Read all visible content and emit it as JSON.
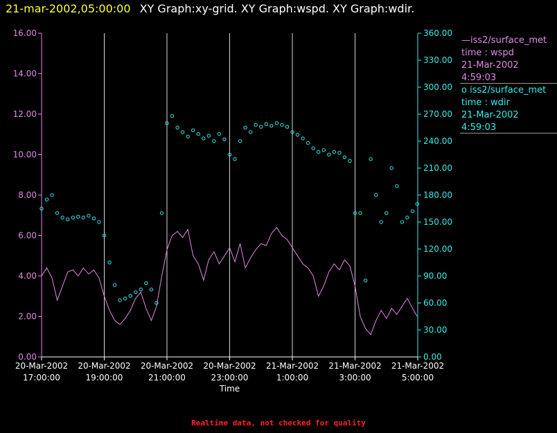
{
  "title": {
    "timestamp": "21-mar-2002,05:00:00",
    "graphs": "XY Graph:xy-grid.  XY Graph:wspd.  XY Graph:wdir."
  },
  "legend": [
    {
      "line1": "—iss2/surface_met",
      "line2": "time : wspd",
      "line3": "21-Mar-2002",
      "line4": "4:59:03",
      "color": "#e28ae2"
    },
    {
      "line1": "o iss2/surface_met",
      "line2": "time : wdir",
      "line3": "21-Mar-2002",
      "line4": "4:59:03",
      "color": "#33eeee"
    }
  ],
  "footer": "Realtime data, not checked for quality",
  "chart_data": {
    "type": "line",
    "title": "XY Graph:xy-grid.  XY Graph:wspd.  XY Graph:wdir.",
    "xlabel": "Time",
    "x_ticks": [
      {
        "date": "20-Mar-2002",
        "time": "17:00:00"
      },
      {
        "date": "20-Mar-2002",
        "time": "19:00:00"
      },
      {
        "date": "20-Mar-2002",
        "time": "21:00:00"
      },
      {
        "date": "20-Mar-2002",
        "time": "23:00:00"
      },
      {
        "date": "21-Mar-2002",
        "time": "1:00:00"
      },
      {
        "date": "21-Mar-2002",
        "time": "3:00:00"
      },
      {
        "date": "21-Mar-2002",
        "time": "5:00:00"
      }
    ],
    "xlim": [
      "2002-03-20T17:00",
      "2002-03-21T05:00"
    ],
    "y_left": {
      "ylim": [
        0,
        16
      ],
      "ticks": [
        "0.00",
        "2.00",
        "4.00",
        "6.00",
        "8.00",
        "10.00",
        "12.00",
        "14.00",
        "16.00"
      ],
      "color": "#e28ae2"
    },
    "y_right": {
      "ylim": [
        0,
        360
      ],
      "ticks": [
        "0.00",
        "30.00",
        "60.00",
        "90.00",
        "120.00",
        "150.00",
        "180.00",
        "210.00",
        "240.00",
        "270.00",
        "300.00",
        "330.00",
        "360.00"
      ],
      "color": "#33eeee"
    },
    "grid": "vertical lines at x ticks",
    "series": [
      {
        "name": "iss2/surface_met time : wspd",
        "axis": "left",
        "style": "line",
        "color": "#e28ae2",
        "points": [
          [
            "2002-03-20T17:00",
            4.0
          ],
          [
            "2002-03-20T17:10",
            4.4
          ],
          [
            "2002-03-20T17:20",
            3.9
          ],
          [
            "2002-03-20T17:30",
            2.8
          ],
          [
            "2002-03-20T17:40",
            3.5
          ],
          [
            "2002-03-20T17:50",
            4.2
          ],
          [
            "2002-03-20T18:00",
            4.3
          ],
          [
            "2002-03-20T18:10",
            4.0
          ],
          [
            "2002-03-20T18:20",
            4.4
          ],
          [
            "2002-03-20T18:30",
            4.1
          ],
          [
            "2002-03-20T18:40",
            4.3
          ],
          [
            "2002-03-20T18:50",
            3.9
          ],
          [
            "2002-03-20T19:00",
            3.0
          ],
          [
            "2002-03-20T19:10",
            2.3
          ],
          [
            "2002-03-20T19:20",
            1.8
          ],
          [
            "2002-03-20T19:30",
            1.6
          ],
          [
            "2002-03-20T19:40",
            1.9
          ],
          [
            "2002-03-20T19:50",
            2.3
          ],
          [
            "2002-03-20T20:00",
            2.9
          ],
          [
            "2002-03-20T20:10",
            3.2
          ],
          [
            "2002-03-20T20:20",
            2.4
          ],
          [
            "2002-03-20T20:30",
            1.8
          ],
          [
            "2002-03-20T20:40",
            2.5
          ],
          [
            "2002-03-20T20:50",
            4.0
          ],
          [
            "2002-03-20T21:00",
            5.3
          ],
          [
            "2002-03-20T21:10",
            6.0
          ],
          [
            "2002-03-20T21:20",
            6.2
          ],
          [
            "2002-03-20T21:30",
            5.9
          ],
          [
            "2002-03-20T21:40",
            6.3
          ],
          [
            "2002-03-20T21:50",
            5.0
          ],
          [
            "2002-03-20T22:00",
            4.6
          ],
          [
            "2002-03-20T22:10",
            3.8
          ],
          [
            "2002-03-20T22:20",
            4.8
          ],
          [
            "2002-03-20T22:30",
            5.2
          ],
          [
            "2002-03-20T22:40",
            4.6
          ],
          [
            "2002-03-20T22:50",
            5.0
          ],
          [
            "2002-03-20T23:00",
            5.4
          ],
          [
            "2002-03-20T23:10",
            4.7
          ],
          [
            "2002-03-20T23:20",
            5.6
          ],
          [
            "2002-03-20T23:30",
            4.4
          ],
          [
            "2002-03-20T23:40",
            4.9
          ],
          [
            "2002-03-20T23:50",
            5.3
          ],
          [
            "2002-03-21T00:00",
            5.6
          ],
          [
            "2002-03-21T00:10",
            5.5
          ],
          [
            "2002-03-21T00:20",
            6.1
          ],
          [
            "2002-03-21T00:30",
            6.4
          ],
          [
            "2002-03-21T00:40",
            6.0
          ],
          [
            "2002-03-21T00:50",
            5.8
          ],
          [
            "2002-03-21T01:00",
            5.4
          ],
          [
            "2002-03-21T01:10",
            5.0
          ],
          [
            "2002-03-21T01:20",
            4.6
          ],
          [
            "2002-03-21T01:30",
            4.4
          ],
          [
            "2002-03-21T01:40",
            4.0
          ],
          [
            "2002-03-21T01:50",
            3.0
          ],
          [
            "2002-03-21T02:00",
            3.5
          ],
          [
            "2002-03-21T02:10",
            4.2
          ],
          [
            "2002-03-21T02:20",
            4.6
          ],
          [
            "2002-03-21T02:30",
            4.3
          ],
          [
            "2002-03-21T02:40",
            4.8
          ],
          [
            "2002-03-21T02:50",
            4.5
          ],
          [
            "2002-03-21T03:00",
            3.5
          ],
          [
            "2002-03-21T03:10",
            2.0
          ],
          [
            "2002-03-21T03:20",
            1.4
          ],
          [
            "2002-03-21T03:30",
            1.1
          ],
          [
            "2002-03-21T03:40",
            1.8
          ],
          [
            "2002-03-21T03:50",
            2.3
          ],
          [
            "2002-03-21T04:00",
            1.9
          ],
          [
            "2002-03-21T04:10",
            2.4
          ],
          [
            "2002-03-21T04:20",
            2.1
          ],
          [
            "2002-03-21T04:30",
            2.5
          ],
          [
            "2002-03-21T04:40",
            2.9
          ],
          [
            "2002-03-21T04:50",
            2.4
          ],
          [
            "2002-03-21T04:59",
            2.0
          ]
        ]
      },
      {
        "name": "iss2/surface_met time : wdir",
        "axis": "right",
        "style": "circles",
        "color": "#33eeee",
        "points": [
          [
            "2002-03-20T17:00",
            165
          ],
          [
            "2002-03-20T17:10",
            175
          ],
          [
            "2002-03-20T17:20",
            180
          ],
          [
            "2002-03-20T17:30",
            160
          ],
          [
            "2002-03-20T17:40",
            155
          ],
          [
            "2002-03-20T17:50",
            153
          ],
          [
            "2002-03-20T18:00",
            155
          ],
          [
            "2002-03-20T18:10",
            156
          ],
          [
            "2002-03-20T18:20",
            155
          ],
          [
            "2002-03-20T18:30",
            157
          ],
          [
            "2002-03-20T18:40",
            154
          ],
          [
            "2002-03-20T18:50",
            150
          ],
          [
            "2002-03-20T19:00",
            135
          ],
          [
            "2002-03-20T19:10",
            105
          ],
          [
            "2002-03-20T19:20",
            80
          ],
          [
            "2002-03-20T19:30",
            63
          ],
          [
            "2002-03-20T19:40",
            65
          ],
          [
            "2002-03-20T19:50",
            68
          ],
          [
            "2002-03-20T20:00",
            72
          ],
          [
            "2002-03-20T20:10",
            75
          ],
          [
            "2002-03-20T20:20",
            82
          ],
          [
            "2002-03-20T20:30",
            75
          ],
          [
            "2002-03-20T20:40",
            60
          ],
          [
            "2002-03-20T20:50",
            160
          ],
          [
            "2002-03-20T21:00",
            260
          ],
          [
            "2002-03-20T21:10",
            268
          ],
          [
            "2002-03-20T21:20",
            255
          ],
          [
            "2002-03-20T21:30",
            250
          ],
          [
            "2002-03-20T21:40",
            245
          ],
          [
            "2002-03-20T21:50",
            252
          ],
          [
            "2002-03-20T22:00",
            248
          ],
          [
            "2002-03-20T22:10",
            243
          ],
          [
            "2002-03-20T22:20",
            246
          ],
          [
            "2002-03-20T22:30",
            240
          ],
          [
            "2002-03-20T22:40",
            248
          ],
          [
            "2002-03-20T22:50",
            242
          ],
          [
            "2002-03-20T23:00",
            225
          ],
          [
            "2002-03-20T23:10",
            220
          ],
          [
            "2002-03-20T23:20",
            240
          ],
          [
            "2002-03-20T23:30",
            255
          ],
          [
            "2002-03-20T23:40",
            250
          ],
          [
            "2002-03-20T23:50",
            258
          ],
          [
            "2002-03-21T00:00",
            256
          ],
          [
            "2002-03-21T00:10",
            259
          ],
          [
            "2002-03-21T00:20",
            257
          ],
          [
            "2002-03-21T00:30",
            260
          ],
          [
            "2002-03-21T00:40",
            258
          ],
          [
            "2002-03-21T00:50",
            256
          ],
          [
            "2002-03-21T01:00",
            250
          ],
          [
            "2002-03-21T01:10",
            247
          ],
          [
            "2002-03-21T01:20",
            243
          ],
          [
            "2002-03-21T01:30",
            238
          ],
          [
            "2002-03-21T01:40",
            232
          ],
          [
            "2002-03-21T01:50",
            228
          ],
          [
            "2002-03-21T02:00",
            230
          ],
          [
            "2002-03-21T02:10",
            225
          ],
          [
            "2002-03-21T02:20",
            228
          ],
          [
            "2002-03-21T02:30",
            227
          ],
          [
            "2002-03-21T02:40",
            222
          ],
          [
            "2002-03-21T02:50",
            218
          ],
          [
            "2002-03-21T03:00",
            160
          ],
          [
            "2002-03-21T03:10",
            160
          ],
          [
            "2002-03-21T03:20",
            85
          ],
          [
            "2002-03-21T03:30",
            220
          ],
          [
            "2002-03-21T03:40",
            180
          ],
          [
            "2002-03-21T03:50",
            150
          ],
          [
            "2002-03-21T04:00",
            160
          ],
          [
            "2002-03-21T04:10",
            210
          ],
          [
            "2002-03-21T04:20",
            190
          ],
          [
            "2002-03-21T04:30",
            150
          ],
          [
            "2002-03-21T04:40",
            155
          ],
          [
            "2002-03-21T04:50",
            162
          ],
          [
            "2002-03-21T04:59",
            170
          ]
        ]
      }
    ]
  }
}
